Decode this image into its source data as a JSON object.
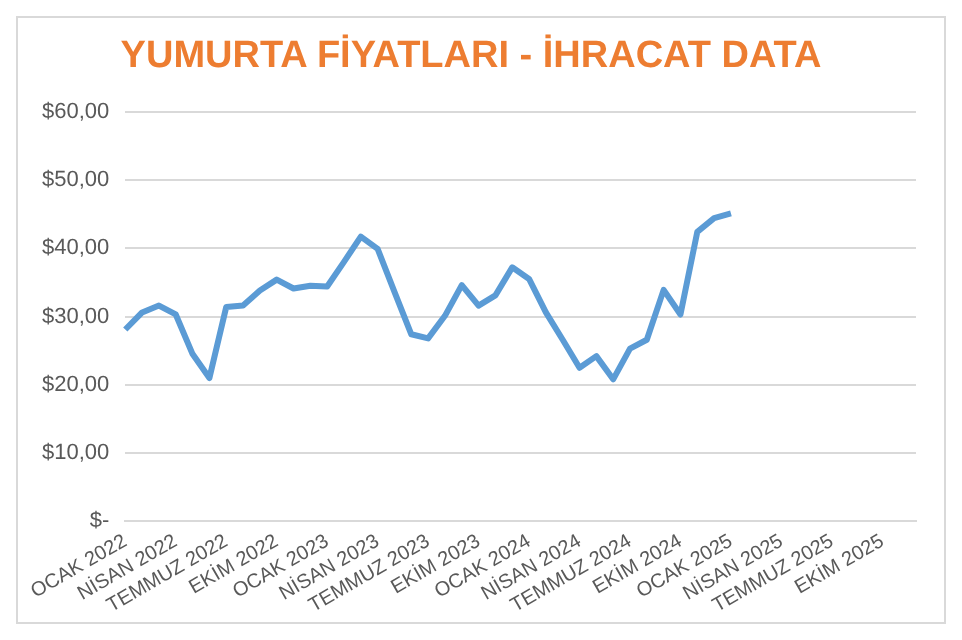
{
  "chart_data": {
    "type": "line",
    "title": "YUMURTA FİYATLARI - İHRACAT DATA",
    "categories": [
      "OCAK 2022",
      null,
      null,
      "NİSAN 2022",
      null,
      null,
      "TEMMUZ 2022",
      null,
      null,
      "EKİM 2022",
      null,
      null,
      "OCAK 2023",
      null,
      null,
      "NİSAN 2023",
      null,
      null,
      "TEMMUZ 2023",
      null,
      null,
      "EKİM 2023",
      null,
      null,
      "OCAK 2024",
      null,
      null,
      "NİSAN 2024",
      null,
      null,
      "TEMMUZ 2024",
      null,
      null,
      "EKİM 2024",
      null,
      null,
      "OCAK 2025",
      null,
      null,
      "NİSAN 2025",
      null,
      null,
      "TEMMUZ 2025",
      null,
      null,
      "EKİM 2025",
      null,
      null
    ],
    "series": [
      {
        "color": "#5b9bd5",
        "values": [
          28.1,
          30.6,
          31.6,
          30.3,
          24.5,
          21.0,
          31.4,
          31.6,
          33.8,
          35.4,
          34.1,
          34.5,
          34.4,
          38.0,
          41.7,
          39.9,
          33.6,
          27.4,
          26.8,
          30.1,
          34.6,
          31.6,
          33.1,
          37.2,
          35.5,
          30.6,
          26.6,
          22.5,
          24.2,
          20.8,
          25.3,
          26.6,
          33.9,
          30.3,
          42.4,
          44.4,
          45.1,
          null,
          null,
          null,
          null,
          null,
          null,
          null,
          null,
          null,
          null,
          null
        ]
      }
    ],
    "ylim": [
      0,
      60
    ],
    "yticks": [
      {
        "value": 0,
        "label": "$-"
      },
      {
        "value": 10,
        "label": "$10,00"
      },
      {
        "value": 20,
        "label": "$20,00"
      },
      {
        "value": 30,
        "label": "$30,00"
      },
      {
        "value": 40,
        "label": "$40,00"
      },
      {
        "value": 50,
        "label": "$50,00"
      },
      {
        "value": 60,
        "label": "$60,00"
      }
    ],
    "grid": "y",
    "legend": false,
    "marker": "none",
    "line_style": "solid"
  }
}
